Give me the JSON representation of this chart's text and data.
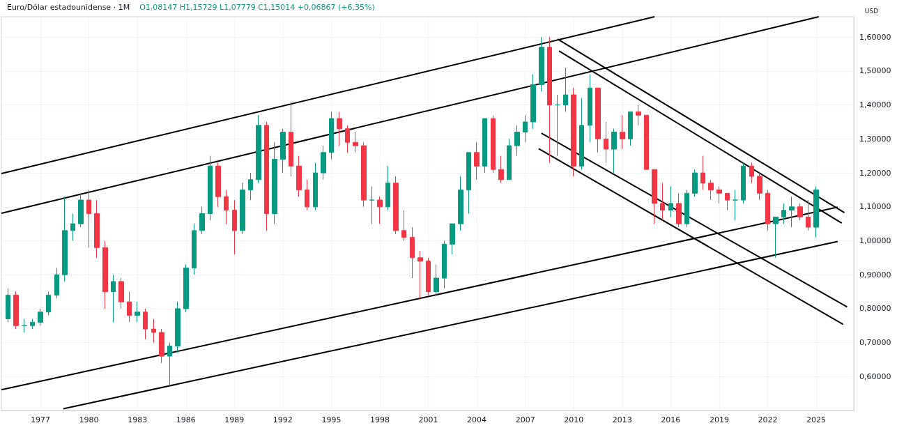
{
  "chart_data": {
    "type": "candlestick",
    "title": "Euro/Dólar estadounidense · 1M",
    "ylabel": "USD",
    "annotations": [
      "O1,08147 H1,15729 L1,07779 C1,15014 +0,06867 (+6,35%)"
    ],
    "xlim": [
      "1974-08",
      "2027-05"
    ],
    "xticks": [
      "1977",
      "1980",
      "1983",
      "1986",
      "1989",
      "1992",
      "1995",
      "1998",
      "2001",
      "2004",
      "2007",
      "2010",
      "2013",
      "2016",
      "2019",
      "2022",
      "2025"
    ],
    "ylim": [
      0.5,
      1.66
    ],
    "yticks": [
      {
        "value": 0.6,
        "label": "0,60000"
      },
      {
        "value": 0.7,
        "label": "0,70000"
      },
      {
        "value": 0.8,
        "label": "0,80000"
      },
      {
        "value": 0.9,
        "label": "0,90000"
      },
      {
        "value": 1.0,
        "label": "1,00000"
      },
      {
        "value": 1.1,
        "label": "1,10000"
      },
      {
        "value": 1.2,
        "label": "1,20000"
      },
      {
        "value": 1.3,
        "label": "1,30000"
      },
      {
        "value": 1.4,
        "label": "1,40000"
      },
      {
        "value": 1.5,
        "label": "1,50000"
      },
      {
        "value": 1.6,
        "label": "1,60000"
      }
    ],
    "grid": true,
    "series": [
      {
        "x": [
          "1975-01",
          "1975-07",
          "1976-01",
          "1976-07",
          "1977-01",
          "1977-07",
          "1978-01",
          "1978-07",
          "1979-01",
          "1979-07",
          "1980-01",
          "1980-07",
          "1981-01",
          "1981-07",
          "1982-01",
          "1982-07",
          "1983-01",
          "1983-07",
          "1984-01",
          "1984-07",
          "1985-01",
          "1985-07",
          "1986-01",
          "1986-07",
          "1987-01",
          "1987-07",
          "1988-01",
          "1988-07",
          "1989-01",
          "1989-07",
          "1990-01",
          "1990-07",
          "1991-01",
          "1991-07",
          "1992-01",
          "1992-07",
          "1993-01",
          "1993-07",
          "1994-01",
          "1994-07",
          "1995-01",
          "1995-07",
          "1996-01",
          "1996-07",
          "1997-01",
          "1997-07",
          "1998-01",
          "1998-07",
          "1999-01",
          "1999-07",
          "2000-01",
          "2000-07",
          "2001-01",
          "2001-07",
          "2002-01",
          "2002-07",
          "2003-01",
          "2003-07",
          "2004-01",
          "2004-07",
          "2005-01",
          "2005-07",
          "2006-01",
          "2006-07",
          "2007-01",
          "2007-07",
          "2008-01",
          "2008-07",
          "2009-01",
          "2009-07",
          "2010-01",
          "2010-07",
          "2011-01",
          "2011-07",
          "2012-01",
          "2012-07",
          "2013-01",
          "2013-07",
          "2014-01",
          "2014-07",
          "2015-01",
          "2015-07",
          "2016-01",
          "2016-07",
          "2017-01",
          "2017-07",
          "2018-01",
          "2018-07",
          "2019-01",
          "2019-07",
          "2020-01",
          "2020-07",
          "2021-01",
          "2021-07",
          "2022-01",
          "2022-07",
          "2023-01",
          "2023-07",
          "2024-01",
          "2024-07",
          "2025-01"
        ],
        "ohlc": [
          [
            0.77,
            0.86,
            0.76,
            0.84
          ],
          [
            0.84,
            0.85,
            0.74,
            0.75
          ],
          [
            0.75,
            0.77,
            0.73,
            0.75
          ],
          [
            0.75,
            0.77,
            0.74,
            0.76
          ],
          [
            0.76,
            0.8,
            0.75,
            0.79
          ],
          [
            0.79,
            0.85,
            0.78,
            0.84
          ],
          [
            0.84,
            0.92,
            0.83,
            0.9
          ],
          [
            0.9,
            1.13,
            0.88,
            1.03
          ],
          [
            1.03,
            1.08,
            1.0,
            1.05
          ],
          [
            1.05,
            1.14,
            1.04,
            1.12
          ],
          [
            1.12,
            1.15,
            0.98,
            1.08
          ],
          [
            1.08,
            1.12,
            0.95,
            0.98
          ],
          [
            0.98,
            1.0,
            0.8,
            0.85
          ],
          [
            0.85,
            0.9,
            0.76,
            0.88
          ],
          [
            0.88,
            0.89,
            0.8,
            0.82
          ],
          [
            0.82,
            0.85,
            0.76,
            0.78
          ],
          [
            0.78,
            0.82,
            0.76,
            0.79
          ],
          [
            0.79,
            0.8,
            0.71,
            0.74
          ],
          [
            0.74,
            0.77,
            0.7,
            0.73
          ],
          [
            0.73,
            0.74,
            0.64,
            0.66
          ],
          [
            0.66,
            0.7,
            0.57,
            0.69
          ],
          [
            0.69,
            0.82,
            0.67,
            0.8
          ],
          [
            0.8,
            0.93,
            0.79,
            0.92
          ],
          [
            0.92,
            1.05,
            0.9,
            1.03
          ],
          [
            1.03,
            1.1,
            1.02,
            1.08
          ],
          [
            1.08,
            1.25,
            1.06,
            1.22
          ],
          [
            1.22,
            1.23,
            1.1,
            1.13
          ],
          [
            1.13,
            1.15,
            1.05,
            1.09
          ],
          [
            1.09,
            1.12,
            0.96,
            1.03
          ],
          [
            1.03,
            1.17,
            1.02,
            1.15
          ],
          [
            1.15,
            1.2,
            1.12,
            1.18
          ],
          [
            1.18,
            1.37,
            1.17,
            1.34
          ],
          [
            1.34,
            1.35,
            1.03,
            1.08
          ],
          [
            1.08,
            1.29,
            1.05,
            1.24
          ],
          [
            1.24,
            1.33,
            1.2,
            1.32
          ],
          [
            1.32,
            1.41,
            1.19,
            1.22
          ],
          [
            1.22,
            1.25,
            1.13,
            1.15
          ],
          [
            1.15,
            1.18,
            1.09,
            1.1
          ],
          [
            1.1,
            1.23,
            1.09,
            1.2
          ],
          [
            1.2,
            1.28,
            1.18,
            1.26
          ],
          [
            1.26,
            1.38,
            1.24,
            1.36
          ],
          [
            1.36,
            1.38,
            1.28,
            1.33
          ],
          [
            1.33,
            1.34,
            1.26,
            1.29
          ],
          [
            1.29,
            1.32,
            1.26,
            1.28
          ],
          [
            1.28,
            1.29,
            1.1,
            1.12
          ],
          [
            1.12,
            1.16,
            1.05,
            1.12
          ],
          [
            1.12,
            1.13,
            1.05,
            1.1
          ],
          [
            1.1,
            1.22,
            1.09,
            1.17
          ],
          [
            1.17,
            1.19,
            1.02,
            1.03
          ],
          [
            1.03,
            1.09,
            1.0,
            1.01
          ],
          [
            1.01,
            1.04,
            0.89,
            0.95
          ],
          [
            0.95,
            0.97,
            0.83,
            0.94
          ],
          [
            0.94,
            0.95,
            0.84,
            0.85
          ],
          [
            0.85,
            0.93,
            0.84,
            0.89
          ],
          [
            0.89,
            1.0,
            0.86,
            0.99
          ],
          [
            0.99,
            1.05,
            0.96,
            1.05
          ],
          [
            1.05,
            1.19,
            1.03,
            1.15
          ],
          [
            1.15,
            1.26,
            1.08,
            1.26
          ],
          [
            1.26,
            1.29,
            1.18,
            1.22
          ],
          [
            1.22,
            1.36,
            1.2,
            1.36
          ],
          [
            1.36,
            1.37,
            1.2,
            1.21
          ],
          [
            1.21,
            1.25,
            1.17,
            1.18
          ],
          [
            1.18,
            1.3,
            1.18,
            1.28
          ],
          [
            1.28,
            1.34,
            1.25,
            1.32
          ],
          [
            1.32,
            1.37,
            1.29,
            1.35
          ],
          [
            1.35,
            1.49,
            1.33,
            1.46
          ],
          [
            1.46,
            1.6,
            1.44,
            1.57
          ],
          [
            1.57,
            1.6,
            1.23,
            1.4
          ],
          [
            1.4,
            1.43,
            1.25,
            1.4
          ],
          [
            1.4,
            1.51,
            1.38,
            1.43
          ],
          [
            1.43,
            1.45,
            1.19,
            1.22
          ],
          [
            1.22,
            1.42,
            1.21,
            1.34
          ],
          [
            1.34,
            1.49,
            1.29,
            1.45
          ],
          [
            1.45,
            1.45,
            1.26,
            1.3
          ],
          [
            1.3,
            1.35,
            1.23,
            1.27
          ],
          [
            1.27,
            1.33,
            1.2,
            1.32
          ],
          [
            1.32,
            1.37,
            1.27,
            1.3
          ],
          [
            1.3,
            1.38,
            1.28,
            1.38
          ],
          [
            1.38,
            1.4,
            1.34,
            1.37
          ],
          [
            1.37,
            1.37,
            1.21,
            1.21
          ],
          [
            1.21,
            1.21,
            1.05,
            1.11
          ],
          [
            1.11,
            1.17,
            1.06,
            1.09
          ],
          [
            1.09,
            1.16,
            1.07,
            1.11
          ],
          [
            1.11,
            1.14,
            1.04,
            1.05
          ],
          [
            1.05,
            1.15,
            1.04,
            1.14
          ],
          [
            1.14,
            1.21,
            1.13,
            1.2
          ],
          [
            1.2,
            1.25,
            1.15,
            1.17
          ],
          [
            1.17,
            1.18,
            1.12,
            1.15
          ],
          [
            1.15,
            1.16,
            1.11,
            1.14
          ],
          [
            1.14,
            1.14,
            1.09,
            1.12
          ],
          [
            1.12,
            1.15,
            1.06,
            1.12
          ],
          [
            1.12,
            1.23,
            1.11,
            1.22
          ],
          [
            1.22,
            1.23,
            1.17,
            1.19
          ],
          [
            1.19,
            1.2,
            1.12,
            1.14
          ],
          [
            1.14,
            1.15,
            1.03,
            1.05
          ],
          [
            1.05,
            1.07,
            0.95,
            1.07
          ],
          [
            1.07,
            1.11,
            1.05,
            1.09
          ],
          [
            1.09,
            1.13,
            1.04,
            1.1
          ],
          [
            1.1,
            1.11,
            1.06,
            1.07
          ],
          [
            1.07,
            1.12,
            1.03,
            1.04
          ],
          [
            1.04,
            1.16,
            1.01,
            1.15
          ]
        ]
      },
      {
        "type": "line",
        "color": "#000000",
        "x": [
          "1974-08",
          "2015-01"
        ],
        "values": [
          1.198,
          1.66
        ]
      },
      {
        "type": "line",
        "color": "#000000",
        "x": [
          "1974-08",
          "2025-03"
        ],
        "values": [
          1.081,
          1.66
        ]
      },
      {
        "type": "line",
        "color": "#000000",
        "x": [
          "1974-08",
          "2026-05"
        ],
        "values": [
          0.561,
          1.099
        ]
      },
      {
        "type": "line",
        "color": "#000000",
        "x": [
          "1978-06",
          "2026-05"
        ],
        "values": [
          0.505,
          0.998
        ]
      },
      {
        "type": "line",
        "color": "#000000",
        "x": [
          "2009-01",
          "2026-10"
        ],
        "values": [
          1.594,
          1.083
        ]
      },
      {
        "type": "line",
        "color": "#000000",
        "x": [
          "2009-02",
          "2026-08"
        ],
        "values": [
          1.559,
          1.052
        ]
      },
      {
        "type": "line",
        "color": "#000000",
        "x": [
          "2008-01",
          "2026-12"
        ],
        "values": [
          1.317,
          0.805
        ]
      },
      {
        "type": "line",
        "color": "#000000",
        "x": [
          "2007-11",
          "2026-09"
        ],
        "values": [
          1.271,
          0.754
        ]
      }
    ]
  }
}
